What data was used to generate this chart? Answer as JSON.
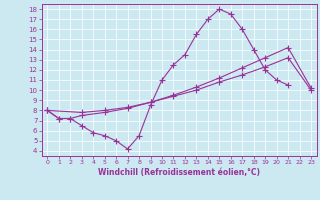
{
  "xlabel": "Windchill (Refroidissement éolien,°C)",
  "bg_color": "#cce8f0",
  "line_color": "#993399",
  "marker": "+",
  "markersize": 4,
  "linewidth": 0.8,
  "xlim": [
    -0.5,
    23.5
  ],
  "ylim": [
    3.5,
    18.5
  ],
  "xticks": [
    0,
    1,
    2,
    3,
    4,
    5,
    6,
    7,
    8,
    9,
    10,
    11,
    12,
    13,
    14,
    15,
    16,
    17,
    18,
    19,
    20,
    21,
    22,
    23
  ],
  "yticks": [
    4,
    5,
    6,
    7,
    8,
    9,
    10,
    11,
    12,
    13,
    14,
    15,
    16,
    17,
    18
  ],
  "curve1_x": [
    0,
    1,
    2,
    3,
    4,
    5,
    6,
    7,
    8,
    9,
    10,
    11,
    12,
    13,
    14,
    15,
    16,
    17,
    18,
    19,
    20,
    21
  ],
  "curve1_y": [
    8.0,
    7.2,
    7.2,
    6.5,
    5.8,
    5.5,
    5.0,
    4.2,
    5.5,
    8.5,
    11.0,
    12.5,
    13.5,
    15.5,
    17.0,
    18.0,
    17.5,
    16.0,
    14.0,
    12.0,
    11.0,
    10.5
  ],
  "curve2_x": [
    0,
    1,
    2,
    3,
    5,
    7,
    9,
    11,
    13,
    15,
    17,
    19,
    21,
    23
  ],
  "curve2_y": [
    8.0,
    7.2,
    7.2,
    7.5,
    7.8,
    8.2,
    8.8,
    9.5,
    10.3,
    11.2,
    12.2,
    13.2,
    14.2,
    10.2
  ],
  "curve3_x": [
    0,
    3,
    5,
    7,
    9,
    11,
    13,
    15,
    17,
    19,
    21,
    23
  ],
  "curve3_y": [
    8.0,
    7.8,
    8.0,
    8.3,
    8.8,
    9.4,
    10.0,
    10.8,
    11.5,
    12.3,
    13.2,
    10.0
  ]
}
